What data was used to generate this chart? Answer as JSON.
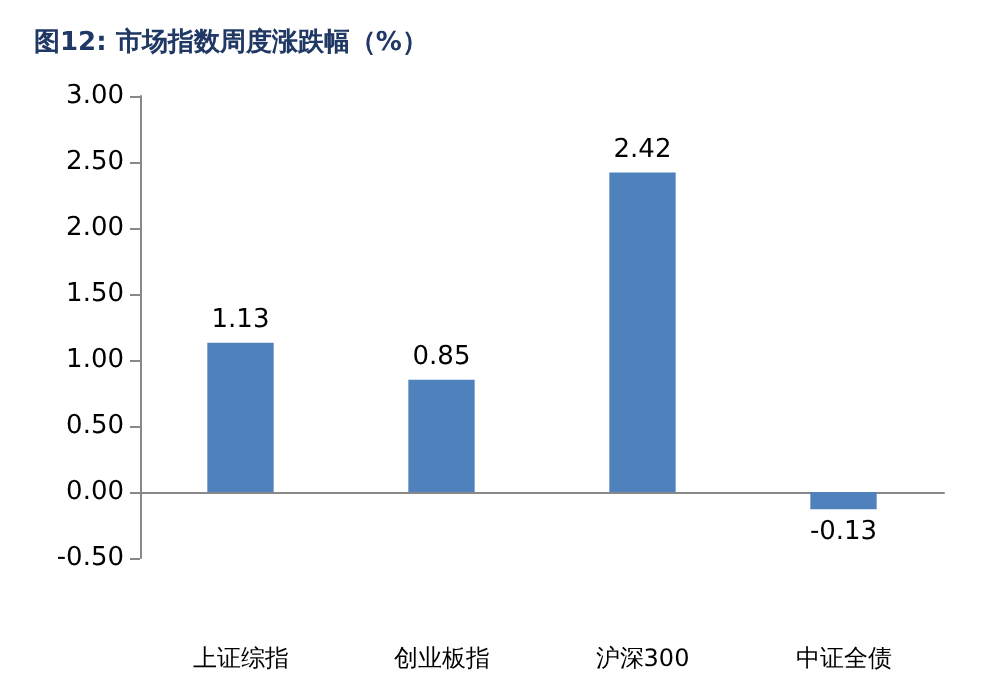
{
  "chart_data": {
    "type": "bar",
    "title": "图12: 市场指数周度涨跌幅（%）",
    "categories": [
      "上证综指",
      "创业板指",
      "沪深300",
      "中证全债"
    ],
    "values": [
      1.13,
      0.85,
      2.42,
      -0.13
    ],
    "color": "#4f81bd",
    "ylim": [
      -0.5,
      3.0
    ],
    "yticks": [
      {
        "value": -0.5,
        "label": "-0.50"
      },
      {
        "value": 0,
        "label": "0.00"
      },
      {
        "value": 0.5,
        "label": "0.50"
      },
      {
        "value": 1.0,
        "label": "1.00"
      },
      {
        "value": 1.5,
        "label": "1.50"
      },
      {
        "value": 2.0,
        "label": "2.00"
      },
      {
        "value": 2.5,
        "label": "2.50"
      },
      {
        "value": 3.0,
        "label": "3.00"
      }
    ],
    "data_labels": true
  }
}
